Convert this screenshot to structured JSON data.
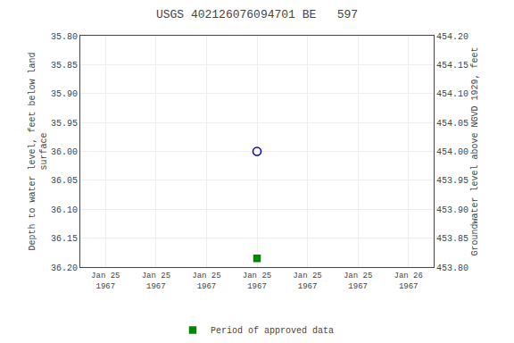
{
  "chart_data": {
    "type": "scatter",
    "title": "USGS 402126076094701 BE   597",
    "y_label": "Depth to water level, feet below land\nsurface",
    "y2_label": "Groundwater level above NGVD 1929, feet",
    "categories": [
      "Jan 25\n1967",
      "Jan 25\n1967",
      "Jan 25\n1967",
      "Jan 25\n1967",
      "Jan 25\n1967",
      "Jan 25\n1967",
      "Jan 26\n1967"
    ],
    "series": [
      {
        "color": "#0000cc",
        "marker": "circle-open",
        "values": [
          null,
          null,
          null,
          36.0,
          null,
          null,
          null
        ]
      },
      {
        "name": "Period of approved data",
        "color": "#008800",
        "marker": "square",
        "values": [
          null,
          null,
          null,
          36.185,
          null,
          null,
          null
        ]
      }
    ],
    "ylim": [
      36.2,
      35.8
    ],
    "yticks": [
      {
        "value": 35.8,
        "label": "35.80"
      },
      35.85,
      {
        "value": 35.9,
        "label": "35.90"
      },
      35.95,
      {
        "value": 36.0,
        "label": "36.00"
      },
      36.05,
      {
        "value": 36.1,
        "label": "36.10"
      },
      36.15,
      {
        "value": 36.2,
        "label": "36.20"
      }
    ],
    "y2lim": [
      453.8,
      454.2
    ],
    "y2ticks": [
      {
        "value": 454.2,
        "label": "454.20"
      },
      454.15,
      {
        "value": 454.1,
        "label": "454.10"
      },
      454.05,
      {
        "value": 454.0,
        "label": "454.00"
      },
      453.95,
      {
        "value": 453.9,
        "label": "453.90"
      },
      453.85,
      {
        "value": 453.8,
        "label": "453.80"
      }
    ],
    "grid": true,
    "legend": "bottom"
  }
}
